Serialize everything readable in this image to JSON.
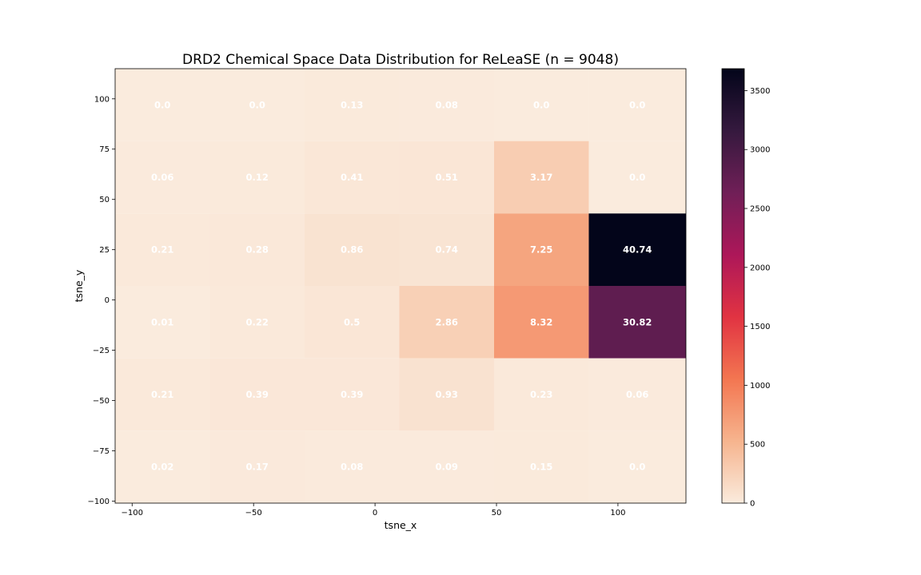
{
  "chart_data": {
    "type": "heatmap",
    "title": "DRD2 Chemical Space Data Distribution for ReLeaSE (n = 9048)",
    "xlabel": "tsne_x",
    "ylabel": "tsne_y",
    "xlim": [
      -107,
      128
    ],
    "ylim": [
      -101,
      115
    ],
    "x_ticks": [
      -100,
      -50,
      0,
      50,
      100
    ],
    "x_tick_labels": [
      "−100",
      "−50",
      "0",
      "50",
      "100"
    ],
    "y_ticks": [
      100,
      75,
      50,
      25,
      0,
      -25,
      -50,
      -75,
      -100
    ],
    "y_tick_labels": [
      "100",
      "75",
      "50",
      "25",
      "0",
      "−25",
      "−50",
      "−75",
      "−100"
    ],
    "x_edges": [
      -107,
      -68,
      -29,
      10,
      49,
      88,
      128
    ],
    "y_edges": [
      115,
      79,
      43,
      7,
      -29,
      -65,
      -101
    ],
    "percent_labels": [
      [
        "0.0",
        "0.0",
        "0.13",
        "0.08",
        "0.0",
        "0.0"
      ],
      [
        "0.06",
        "0.12",
        "0.41",
        "0.51",
        "3.17",
        "0.0"
      ],
      [
        "0.21",
        "0.28",
        "0.86",
        "0.74",
        "7.25",
        "40.74"
      ],
      [
        "0.01",
        "0.22",
        "0.5",
        "2.86",
        "8.32",
        "30.82"
      ],
      [
        "0.21",
        "0.39",
        "0.39",
        "0.93",
        "0.23",
        "0.06"
      ],
      [
        "0.02",
        "0.17",
        "0.08",
        "0.09",
        "0.15",
        "0.0"
      ]
    ],
    "counts": [
      [
        0,
        0,
        12,
        7,
        0,
        0
      ],
      [
        5,
        11,
        37,
        46,
        287,
        0
      ],
      [
        19,
        25,
        78,
        67,
        656,
        3686
      ],
      [
        1,
        20,
        45,
        259,
        753,
        2789
      ],
      [
        19,
        35,
        35,
        84,
        21,
        5
      ],
      [
        2,
        15,
        7,
        8,
        14,
        0
      ]
    ],
    "colorbar": {
      "min": 0,
      "max": 3686,
      "ticks": [
        0,
        500,
        1000,
        1500,
        2000,
        2500,
        3000,
        3500
      ],
      "colormap": "rocket_r",
      "stops": [
        "#faebdd",
        "#f6b48e",
        "#f37651",
        "#e13342",
        "#ad1759",
        "#701f57",
        "#35193e",
        "#03051a"
      ]
    }
  }
}
